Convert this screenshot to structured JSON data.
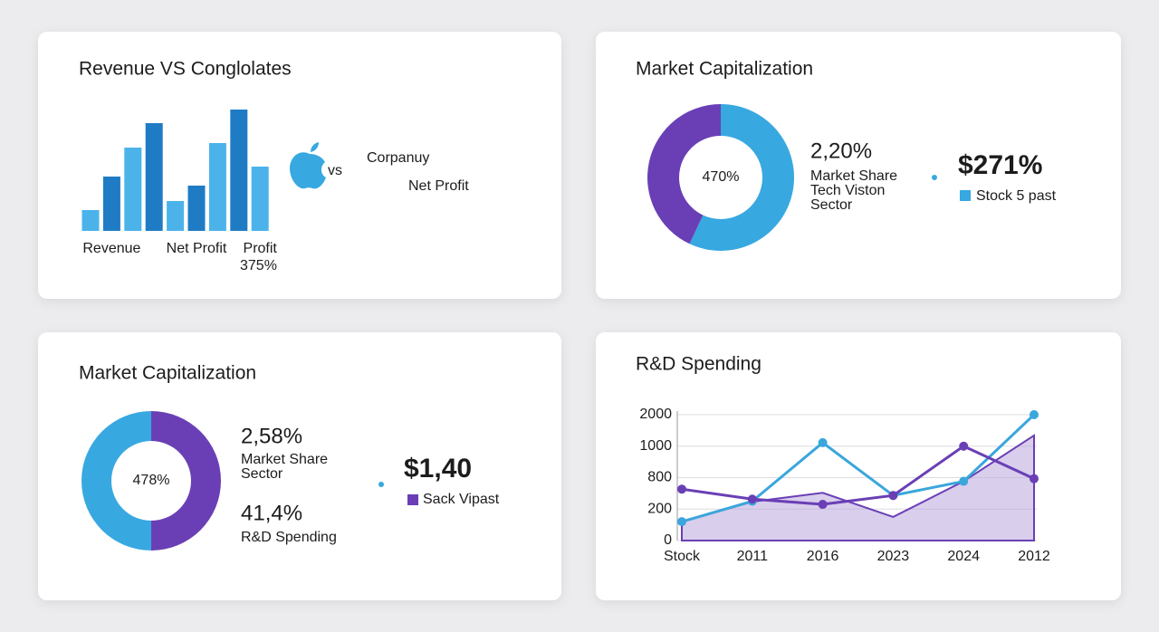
{
  "chart_data": [
    {
      "type": "bar",
      "title": "Revenue VS Conglolates",
      "categories": [
        null,
        "Revenue",
        null,
        null,
        null,
        "Net Profit",
        null,
        null,
        "Profit"
      ],
      "values": [
        23,
        60,
        92,
        119,
        33,
        50,
        97,
        134,
        71
      ],
      "colors": [
        "#4bb3ea",
        "#1f7cc4",
        "#4bb3ea",
        "#1f7cc4",
        "#4bb3ea",
        "#1f7cc4",
        "#4bb3ea",
        "#1f7cc4",
        "#4bb3ea"
      ],
      "annotations": [
        "375%",
        "vs",
        "Corpanuy",
        "Net Profit"
      ]
    },
    {
      "type": "pie",
      "title": "Market Capitalization",
      "center_label": "470%",
      "values": [
        57,
        43
      ],
      "colors": [
        "#38a8e0",
        "#6a3fb5"
      ],
      "annotations": [
        "2,20%",
        "Market Share",
        "Tech Viston",
        "Sector",
        "$271%",
        "Stock 5 past"
      ]
    },
    {
      "type": "pie",
      "title": "Market Capitalization",
      "center_label": "478%",
      "values": [
        50,
        50
      ],
      "colors": [
        "#6a3fb5",
        "#38a8e0"
      ],
      "annotations": [
        "2,58%",
        "Market Share",
        "Sector",
        "41,4%",
        "R&D Spending",
        "$1,40",
        "Sack Vipast"
      ]
    },
    {
      "type": "line",
      "title": "R&D Spending",
      "categories": [
        "Stock",
        "2011",
        "2016",
        "2023",
        "2024",
        "2012"
      ],
      "series": [
        {
          "color": "#b9a6dc",
          "area": true,
          "values": [
            120,
            340,
            510,
            150,
            730,
            1340
          ]
        },
        {
          "color": "#3aa6dc",
          "values": [
            120,
            350,
            1110,
            460,
            730,
            2000
          ]
        },
        {
          "color": "#6a3fb5",
          "values": [
            580,
            390,
            290,
            460,
            1000,
            780
          ]
        }
      ],
      "ylim": [
        0,
        2000
      ],
      "yticks": [
        0,
        200,
        800,
        1000,
        2000
      ],
      "grid": true
    }
  ]
}
